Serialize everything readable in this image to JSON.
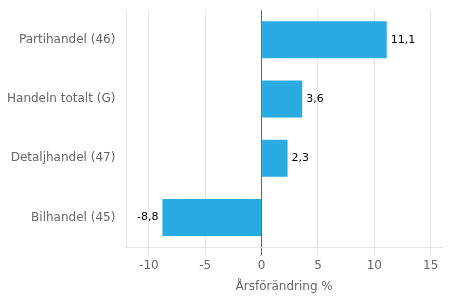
{
  "chart_data": {
    "type": "bar",
    "orientation": "horizontal",
    "categories": [
      "Bilhandel (45)",
      "Detaljhandel (47)",
      "Handeln totalt (G)",
      "Partihandel (46)"
    ],
    "values": [
      -8.8,
      2.3,
      3.6,
      11.1
    ],
    "value_labels": [
      "-8,8",
      "2,3",
      "3,6",
      "11,1"
    ],
    "data_labels": true,
    "color": "#29abe2",
    "xlabel": "Årsförändring %",
    "xlim": [
      -12,
      16
    ],
    "xticks": [
      -10,
      -5,
      0,
      5,
      10,
      15
    ],
    "grid": true
  }
}
